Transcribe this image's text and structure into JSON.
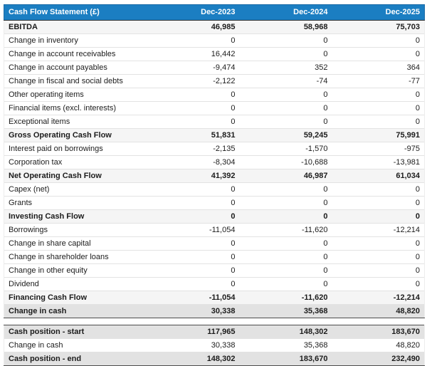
{
  "chart_data": {
    "type": "table",
    "title": "Cash Flow Statement (£)",
    "columns": [
      "Dec-2023",
      "Dec-2024",
      "Dec-2025"
    ],
    "rows": [
      {
        "label": "EBITDA",
        "values": [
          "46,985",
          "58,968",
          "75,703"
        ],
        "style": "subtotal"
      },
      {
        "label": "Change in inventory",
        "values": [
          "0",
          "0",
          "0"
        ],
        "style": "normal"
      },
      {
        "label": "Change in account receivables",
        "values": [
          "16,442",
          "0",
          "0"
        ],
        "style": "normal"
      },
      {
        "label": "Change in account payables",
        "values": [
          "-9,474",
          "352",
          "364"
        ],
        "style": "normal"
      },
      {
        "label": "Change in fiscal and social debts",
        "values": [
          "-2,122",
          "-74",
          "-77"
        ],
        "style": "normal"
      },
      {
        "label": "Other operating items",
        "values": [
          "0",
          "0",
          "0"
        ],
        "style": "normal"
      },
      {
        "label": "Financial items (excl. interests)",
        "values": [
          "0",
          "0",
          "0"
        ],
        "style": "normal"
      },
      {
        "label": "Exceptional items",
        "values": [
          "0",
          "0",
          "0"
        ],
        "style": "normal"
      },
      {
        "label": "Gross Operating Cash Flow",
        "values": [
          "51,831",
          "59,245",
          "75,991"
        ],
        "style": "subtotal"
      },
      {
        "label": "Interest paid on borrowings",
        "values": [
          "-2,135",
          "-1,570",
          "-975"
        ],
        "style": "normal"
      },
      {
        "label": "Corporation tax",
        "values": [
          "-8,304",
          "-10,688",
          "-13,981"
        ],
        "style": "normal"
      },
      {
        "label": "Net Operating Cash Flow",
        "values": [
          "41,392",
          "46,987",
          "61,034"
        ],
        "style": "subtotal"
      },
      {
        "label": "Capex (net)",
        "values": [
          "0",
          "0",
          "0"
        ],
        "style": "normal"
      },
      {
        "label": "Grants",
        "values": [
          "0",
          "0",
          "0"
        ],
        "style": "normal"
      },
      {
        "label": "Investing Cash Flow",
        "values": [
          "0",
          "0",
          "0"
        ],
        "style": "subtotal"
      },
      {
        "label": "Borrowings",
        "values": [
          "-11,054",
          "-11,620",
          "-12,214"
        ],
        "style": "normal"
      },
      {
        "label": "Change in share capital",
        "values": [
          "0",
          "0",
          "0"
        ],
        "style": "normal"
      },
      {
        "label": "Change in shareholder loans",
        "values": [
          "0",
          "0",
          "0"
        ],
        "style": "normal"
      },
      {
        "label": "Change in other equity",
        "values": [
          "0",
          "0",
          "0"
        ],
        "style": "normal"
      },
      {
        "label": "Dividend",
        "values": [
          "0",
          "0",
          "0"
        ],
        "style": "normal"
      },
      {
        "label": "Financing Cash Flow",
        "values": [
          "-11,054",
          "-11,620",
          "-12,214"
        ],
        "style": "subtotal"
      },
      {
        "label": "Change in cash",
        "values": [
          "30,338",
          "35,368",
          "48,820"
        ],
        "style": "strong",
        "dark_bottom": true
      },
      {
        "style": "gap"
      },
      {
        "label": "Cash position - start",
        "values": [
          "117,965",
          "148,302",
          "183,670"
        ],
        "style": "strong",
        "dark_top": true
      },
      {
        "label": "Change in cash",
        "values": [
          "30,338",
          "35,368",
          "48,820"
        ],
        "style": "normal"
      },
      {
        "label": "Cash position - end",
        "values": [
          "148,302",
          "183,670",
          "232,490"
        ],
        "style": "strong",
        "dark_bottom": true
      }
    ],
    "layout": {
      "grid": "horizontal-row-separators",
      "value_alignment": "right"
    }
  },
  "colors": {
    "header_bg": "#1b7ec2",
    "header_text": "#ffffff",
    "subtotal_row_bg": "#f5f5f5",
    "strong_row_bg": "#e2e2e2",
    "row_separator": "#e3e3e3",
    "section_separator": "#4d4d4d",
    "body_text": "#1c1c1c"
  }
}
